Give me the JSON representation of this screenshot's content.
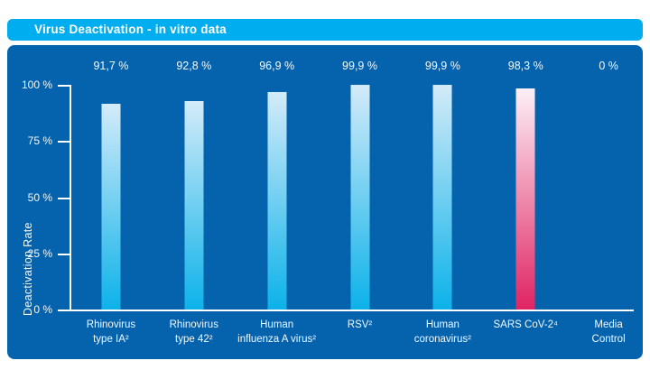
{
  "header": {
    "title": "Virus Deactivation - in vitro data"
  },
  "colors": {
    "title_bar_bg": "#00AEEF",
    "panel_bg": "#0563AE",
    "axis": "#FFFFFF",
    "chart_text": "#F2F9FE",
    "bar_blue_top": "#D3EBF9",
    "bar_blue_bottom": "#0CB2E9",
    "bar_red_top": "#FCF0F6",
    "bar_red_bottom": "#E02463"
  },
  "chart_data": {
    "type": "bar",
    "title": "Virus Deactivation - in vitro data",
    "xlabel": "",
    "ylabel": "Deactivation Rate",
    "ylim": [
      0,
      100
    ],
    "grid": false,
    "legend_position": "none",
    "yticks": [
      {
        "value": 100,
        "label": "100 %"
      },
      {
        "value": 75,
        "label": "75 %"
      },
      {
        "value": 50,
        "label": "50 %"
      },
      {
        "value": 25,
        "label": "25 %"
      },
      {
        "value": 0,
        "label": "0 %"
      }
    ],
    "categories": [
      "Rhinovirus type IA²",
      "Rhinovirus type 42²",
      "Human influenza A virus²",
      "RSV²",
      "Human coronavirus²",
      "SARS CoV-2⁴",
      "Media Control"
    ],
    "values": [
      91.7,
      92.8,
      96.9,
      99.9,
      99.9,
      98.3,
      0
    ],
    "bars": [
      {
        "label_lines": [
          "Rhinovirus",
          "type IA²"
        ],
        "value": 91.7,
        "value_label": "91,7 %",
        "color": "blue"
      },
      {
        "label_lines": [
          "Rhinovirus",
          "type 42²"
        ],
        "value": 92.8,
        "value_label": "92,8 %",
        "color": "blue"
      },
      {
        "label_lines": [
          "Human",
          "influenza A virus²"
        ],
        "value": 96.9,
        "value_label": "96,9 %",
        "color": "blue"
      },
      {
        "label_lines": [
          "RSV²"
        ],
        "value": 99.9,
        "value_label": "99,9 %",
        "color": "blue"
      },
      {
        "label_lines": [
          "Human",
          "coronavirus²"
        ],
        "value": 99.9,
        "value_label": "99,9 %",
        "color": "blue"
      },
      {
        "label_lines": [
          "SARS CoV-2⁴"
        ],
        "value": 98.3,
        "value_label": "98,3 %",
        "color": "red"
      },
      {
        "label_lines": [
          "Media",
          "Control"
        ],
        "value": 0,
        "value_label": "0 %",
        "color": "none"
      }
    ]
  }
}
